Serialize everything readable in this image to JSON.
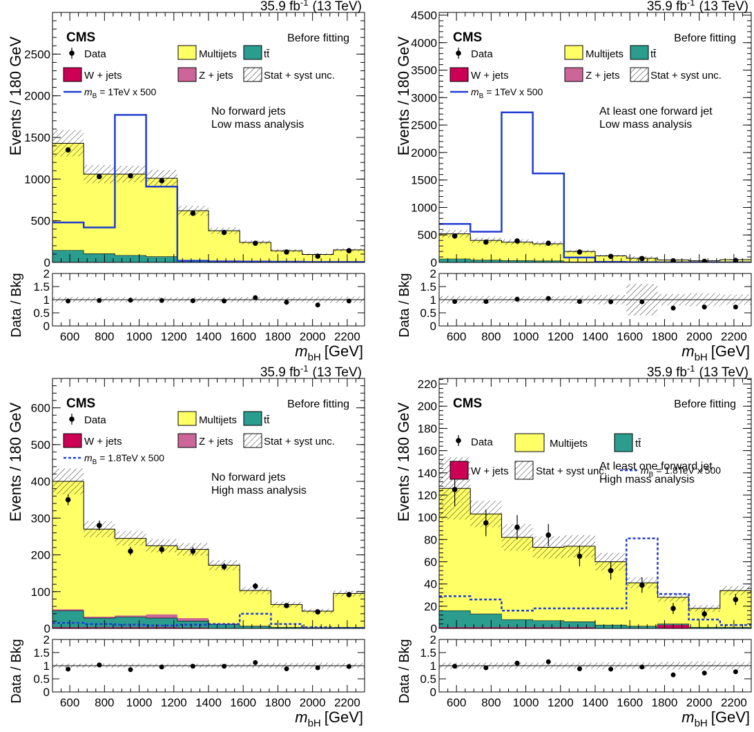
{
  "figure": {
    "lumi": "35.9 fb",
    "lumi_exp": "-1",
    "energy": "(13 TeV)",
    "cms": "CMS",
    "stage": "Before fitting",
    "ylabel_main": "Events / 180 GeV",
    "ylabel_ratio": "Data / Bkg",
    "xlabel_main": "m",
    "xlabel_sub": "bH",
    "xlabel_unit": "[GeV]"
  },
  "colors": {
    "multijets": "#ffff66",
    "ttbar": "#2a9d8f",
    "wjets": "#cc0055",
    "zjets": "#cc6699",
    "signal": "#1f3bd1"
  },
  "chart_data": [
    {
      "type": "bar",
      "region": [
        "No forward jets",
        "Low mass analysis"
      ],
      "edges": [
        500,
        680,
        860,
        1040,
        1220,
        1400,
        1580,
        1760,
        1940,
        2120,
        2300
      ],
      "ylim": [
        0,
        3000
      ],
      "yticks": [
        0,
        500,
        1000,
        1500,
        2000,
        2500
      ],
      "legend": {
        "data": "Data",
        "multijets": "Multijets",
        "ttbar": "tt̄",
        "wjets": "W + jets",
        "zjets": "Z + jets",
        "unc": "Stat + syst unc.",
        "signal_m": "m",
        "signal_sub": "B",
        "signal_text": " = 1TeV x 500",
        "layout": "grid"
      },
      "signal_dashed": false,
      "series": {
        "ttbar": [
          140,
          100,
          80,
          65,
          25,
          15,
          10,
          6,
          4,
          5
        ],
        "wjets": [
          5,
          5,
          4,
          4,
          2,
          2,
          1,
          1,
          1,
          1
        ],
        "zjets": [
          0,
          0,
          0,
          0,
          0,
          0,
          0,
          0,
          0,
          0
        ],
        "total": [
          1430,
          1060,
          1060,
          1010,
          620,
          380,
          240,
          140,
          95,
          150
        ],
        "unc": [
          160,
          110,
          100,
          100,
          60,
          40,
          25,
          18,
          14,
          20
        ],
        "signal": [
          480,
          420,
          1770,
          910,
          20,
          12,
          10,
          8,
          5,
          5
        ],
        "data": [
          1350,
          1030,
          1040,
          980,
          590,
          360,
          230,
          125,
          75,
          140
        ]
      },
      "ratio": [
        0.95,
        0.97,
        0.98,
        0.97,
        0.96,
        0.95,
        1.08,
        0.9,
        0.8,
        0.95
      ],
      "ratio_unc": [
        0.1,
        0.1,
        0.1,
        0.1,
        0.1,
        0.1,
        0.1,
        0.1,
        0.12,
        0.12
      ]
    },
    {
      "type": "bar",
      "region": [
        "At least one forward jet",
        "Low mass analysis"
      ],
      "edges": [
        500,
        680,
        860,
        1040,
        1220,
        1400,
        1580,
        1760,
        1940,
        2120,
        2300
      ],
      "ylim": [
        0,
        4550
      ],
      "yticks": [
        0,
        500,
        1000,
        1500,
        2000,
        2500,
        3000,
        3500,
        4000,
        4500
      ],
      "legend": {
        "data": "Data",
        "multijets": "Multijets",
        "ttbar": "tt̄",
        "wjets": "W + jets",
        "zjets": "Z + jets",
        "unc": "Stat + syst unc.",
        "signal_m": "m",
        "signal_sub": "B",
        "signal_text": " = 1TeV x 500",
        "layout": "grid"
      },
      "signal_dashed": false,
      "series": {
        "ttbar": [
          60,
          40,
          30,
          25,
          10,
          8,
          5,
          3,
          2,
          2
        ],
        "wjets": [
          3,
          2,
          2,
          2,
          1,
          1,
          1,
          1,
          0,
          0
        ],
        "zjets": [
          0,
          0,
          0,
          0,
          0,
          0,
          0,
          0,
          0,
          0
        ],
        "total": [
          520,
          400,
          370,
          340,
          200,
          120,
          75,
          45,
          30,
          50
        ],
        "unc": [
          70,
          50,
          50,
          45,
          30,
          20,
          40,
          10,
          8,
          10
        ],
        "signal": [
          700,
          560,
          2730,
          1620,
          90,
          10,
          5,
          3,
          2,
          2
        ],
        "data": [
          480,
          370,
          390,
          350,
          190,
          110,
          70,
          30,
          20,
          35
        ]
      },
      "ratio": [
        0.93,
        0.93,
        1.02,
        1.05,
        0.93,
        0.92,
        0.92,
        0.68,
        0.72,
        0.72
      ],
      "ratio_unc": [
        0.14,
        0.14,
        0.13,
        0.13,
        0.15,
        0.18,
        0.6,
        0.22,
        0.25,
        0.2
      ]
    },
    {
      "type": "bar",
      "region": [
        "No forward jets",
        "High mass analysis"
      ],
      "edges": [
        500,
        680,
        860,
        1040,
        1220,
        1400,
        1580,
        1760,
        1940,
        2120,
        2300
      ],
      "ylim": [
        0,
        680
      ],
      "yticks": [
        0,
        100,
        200,
        300,
        400,
        500,
        600
      ],
      "legend": {
        "data": "Data",
        "multijets": "Multijets",
        "ttbar": "tt̄",
        "wjets": "W + jets",
        "zjets": "Z + jets",
        "unc": "Stat + syst unc.",
        "signal_m": "m",
        "signal_sub": "B",
        "signal_text": " = 1.8TeV x 500",
        "layout": "grid"
      },
      "signal_dashed": true,
      "series": {
        "ttbar": [
          45,
          25,
          28,
          25,
          18,
          10,
          5,
          3,
          2,
          3
        ],
        "wjets": [
          3,
          3,
          3,
          3,
          2,
          1,
          1,
          0,
          0,
          0
        ],
        "zjets": [
          4,
          4,
          4,
          10,
          8,
          2,
          1,
          0,
          0,
          0
        ],
        "total": [
          400,
          270,
          245,
          225,
          215,
          172,
          103,
          65,
          47,
          95
        ],
        "unc": [
          35,
          22,
          20,
          18,
          17,
          14,
          10,
          8,
          6,
          8
        ],
        "signal": [
          15,
          12,
          10,
          8,
          10,
          12,
          40,
          12,
          3,
          1
        ],
        "data": [
          350,
          280,
          210,
          215,
          210,
          168,
          115,
          62,
          45,
          92
        ]
      },
      "ratio": [
        0.87,
        1.03,
        0.85,
        0.95,
        0.98,
        0.98,
        1.12,
        0.88,
        0.92,
        0.97
      ],
      "ratio_unc": [
        0.08,
        0.08,
        0.08,
        0.08,
        0.08,
        0.08,
        0.09,
        0.1,
        0.12,
        0.1
      ]
    },
    {
      "type": "bar",
      "region": [
        "At least one forward jet",
        "High mass analysis"
      ],
      "edges": [
        500,
        680,
        860,
        1040,
        1220,
        1400,
        1580,
        1760,
        1940,
        2120,
        2300
      ],
      "ylim": [
        0,
        225
      ],
      "yticks": [
        0,
        20,
        40,
        60,
        80,
        100,
        120,
        140,
        160,
        180,
        200,
        220
      ],
      "legend": {
        "data": "Data",
        "multijets": "Multijets",
        "ttbar": "tt̄",
        "wjets": "W + jets",
        "unc": "Stat + syst unc.",
        "signal_m": "m",
        "signal_sub": "B",
        "signal_text": " = 1.8TeV x 500",
        "layout": "wide"
      },
      "signal_dashed": true,
      "series": {
        "ttbar": [
          15,
          12,
          7,
          6,
          5,
          3,
          2,
          1,
          1,
          1
        ],
        "wjets": [
          1,
          1,
          1,
          1,
          1,
          0,
          0,
          3,
          0,
          0
        ],
        "zjets": [
          0,
          0,
          0,
          0,
          0,
          0,
          0,
          0,
          0,
          0
        ],
        "total": [
          126,
          103,
          82,
          73,
          74,
          60,
          41,
          28,
          18,
          34
        ],
        "unc": [
          28,
          12,
          12,
          10,
          10,
          8,
          5,
          4,
          3,
          4
        ],
        "signal": [
          29,
          26,
          16,
          18,
          18,
          18,
          81,
          31,
          8,
          3
        ],
        "data": [
          125,
          95,
          91,
          84,
          65,
          52,
          39,
          18,
          13,
          26
        ]
      },
      "data_err": [
        15,
        12,
        11,
        10,
        9,
        8,
        7,
        5,
        4,
        5
      ],
      "ratio": [
        0.98,
        0.92,
        1.1,
        1.15,
        0.88,
        0.87,
        0.95,
        0.65,
        0.72,
        0.77
      ],
      "ratio_unc": [
        0.12,
        0.12,
        0.12,
        0.12,
        0.12,
        0.13,
        0.12,
        0.14,
        0.16,
        0.14
      ]
    }
  ],
  "ratio_axis": {
    "ylim": [
      0,
      2
    ],
    "yticks": [
      0,
      0.5,
      1,
      1.5,
      2
    ],
    "yticklabels": [
      "0",
      "0.5",
      "1",
      "1.5",
      "2"
    ]
  },
  "x_ticks": [
    600,
    800,
    1000,
    1200,
    1400,
    1600,
    1800,
    2000,
    2200
  ]
}
